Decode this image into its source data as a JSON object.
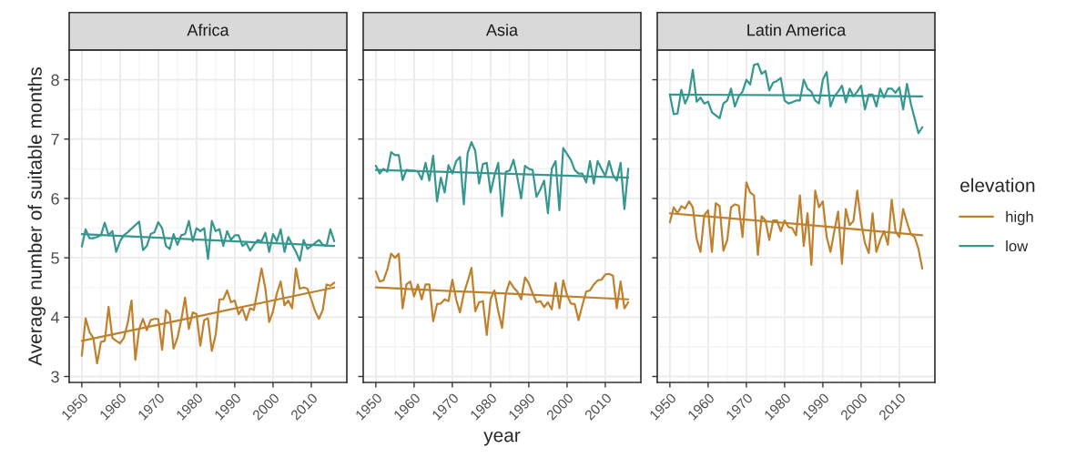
{
  "chart_data": [
    {
      "type": "line",
      "title": "Africa",
      "ylabel": "Average number of suitable months",
      "grid": true,
      "xlim": [
        1946.7,
        2019.3
      ],
      "ylim": [
        2.9,
        8.5
      ],
      "xticks": [
        1950,
        1960,
        1970,
        1980,
        1990,
        2000,
        2010
      ],
      "yticks": [
        3,
        4,
        5,
        6,
        7,
        8
      ],
      "x": [
        1950,
        1951,
        1952,
        1953,
        1954,
        1955,
        1956,
        1957,
        1958,
        1959,
        1960,
        1961,
        1962,
        1963,
        1964,
        1965,
        1966,
        1967,
        1968,
        1969,
        1970,
        1971,
        1972,
        1973,
        1974,
        1975,
        1976,
        1977,
        1978,
        1979,
        1980,
        1981,
        1982,
        1983,
        1984,
        1985,
        1986,
        1987,
        1988,
        1989,
        1990,
        1991,
        1992,
        1993,
        1994,
        1995,
        1996,
        1997,
        1998,
        1999,
        2000,
        2001,
        2002,
        2003,
        2004,
        2005,
        2006,
        2007,
        2008,
        2009,
        2010,
        2011,
        2012,
        2013,
        2014,
        2015,
        2016
      ],
      "series": [
        {
          "color": "#bf812d",
          "values": [
            3.35,
            3.98,
            3.75,
            3.65,
            3.22,
            3.58,
            3.6,
            4.17,
            3.65,
            3.6,
            3.56,
            3.65,
            3.9,
            4.28,
            3.28,
            3.8,
            3.97,
            3.78,
            3.95,
            3.97,
            3.97,
            3.45,
            4.12,
            4.05,
            3.47,
            3.65,
            3.95,
            4.33,
            3.8,
            4.08,
            4.05,
            3.52,
            3.95,
            3.98,
            3.43,
            3.7,
            4.3,
            4.3,
            4.45,
            4.25,
            4.28,
            4.05,
            4.15,
            3.95,
            4.15,
            4.12,
            4.47,
            4.82,
            4.48,
            3.92,
            4.1,
            4.4,
            4.6,
            4.2,
            4.28,
            4.15,
            4.82,
            4.48,
            4.5,
            4.48,
            4.3,
            4.1,
            3.97,
            4.12,
            4.55,
            4.53,
            4.58
          ]
        },
        {
          "color": "#35978f",
          "values": [
            5.19,
            5.48,
            5.33,
            5.33,
            5.35,
            5.38,
            5.59,
            5.38,
            5.45,
            5.1,
            5.28,
            5.38,
            5.43,
            5.49,
            5.55,
            5.61,
            5.13,
            5.2,
            5.4,
            5.43,
            5.6,
            5.5,
            5.2,
            5.15,
            5.4,
            5.22,
            5.38,
            5.4,
            5.62,
            5.28,
            5.5,
            5.45,
            5.5,
            4.98,
            5.62,
            5.45,
            5.48,
            5.2,
            5.45,
            5.3,
            5.38,
            5.38,
            5.2,
            5.25,
            5.12,
            5.22,
            5.3,
            5.28,
            5.42,
            5.1,
            5.4,
            5.28,
            5.48,
            5.1,
            5.35,
            5.22,
            5.1,
            4.95,
            5.3,
            5.15,
            5.2,
            5.25,
            5.3,
            5.22,
            5.2,
            5.48,
            5.28
          ]
        },
        {
          "type": "line",
          "color": "#bf812d",
          "x": [
            1950,
            1983,
            2016
          ],
          "values": [
            3.6,
            4.05,
            4.5
          ]
        },
        {
          "type": "line",
          "color": "#35978f",
          "x": [
            1950,
            1983,
            2016
          ],
          "values": [
            5.4,
            5.3,
            5.2
          ]
        }
      ]
    },
    {
      "type": "line",
      "title": "Asia",
      "xlabel": "year",
      "grid": true,
      "tick_labels": "x",
      "xlim": [
        1946.7,
        2019.3
      ],
      "ylim": [
        2.9,
        8.5
      ],
      "xticks": [
        1950,
        1960,
        1970,
        1980,
        1990,
        2000,
        2010
      ],
      "yticks": [
        3,
        4,
        5,
        6,
        7,
        8
      ],
      "x": [
        1950,
        1951,
        1952,
        1953,
        1954,
        1955,
        1956,
        1957,
        1958,
        1959,
        1960,
        1961,
        1962,
        1963,
        1964,
        1965,
        1966,
        1967,
        1968,
        1969,
        1970,
        1971,
        1972,
        1973,
        1974,
        1975,
        1976,
        1977,
        1978,
        1979,
        1980,
        1981,
        1982,
        1983,
        1984,
        1985,
        1986,
        1987,
        1988,
        1989,
        1990,
        1991,
        1992,
        1993,
        1994,
        1995,
        1996,
        1997,
        1998,
        1999,
        2000,
        2001,
        2002,
        2003,
        2004,
        2005,
        2006,
        2007,
        2008,
        2009,
        2010,
        2011,
        2012,
        2013,
        2014,
        2015,
        2016
      ],
      "series": [
        {
          "color": "#bf812d",
          "values": [
            4.77,
            4.6,
            4.62,
            4.8,
            5.07,
            5.0,
            5.07,
            4.15,
            4.55,
            4.6,
            4.35,
            4.55,
            4.3,
            4.55,
            4.55,
            3.93,
            4.22,
            4.23,
            4.3,
            4.27,
            4.63,
            4.3,
            4.08,
            4.4,
            4.6,
            4.83,
            4.1,
            4.25,
            4.27,
            3.7,
            4.3,
            4.45,
            4.1,
            3.82,
            4.4,
            4.6,
            4.5,
            4.43,
            4.3,
            4.67,
            4.57,
            4.4,
            4.25,
            4.27,
            4.17,
            4.25,
            4.13,
            4.58,
            4.15,
            4.62,
            4.37,
            4.23,
            4.22,
            3.95,
            4.2,
            4.43,
            4.45,
            4.55,
            4.62,
            4.63,
            4.72,
            4.73,
            4.7,
            4.15,
            4.6,
            4.15,
            4.25
          ]
        },
        {
          "color": "#35978f",
          "values": [
            6.55,
            6.42,
            6.5,
            6.45,
            6.78,
            6.73,
            6.73,
            6.31,
            6.48,
            6.47,
            6.47,
            6.45,
            6.32,
            6.6,
            6.3,
            6.72,
            5.95,
            6.35,
            6.1,
            6.56,
            6.42,
            6.63,
            6.7,
            5.9,
            6.76,
            6.95,
            6.8,
            6.25,
            6.58,
            6.6,
            6.1,
            6.38,
            6.6,
            5.7,
            6.45,
            6.47,
            6.65,
            6.35,
            6.0,
            6.55,
            6.5,
            6.48,
            6.03,
            6.15,
            6.3,
            5.75,
            6.5,
            6.63,
            5.8,
            6.85,
            6.75,
            6.65,
            6.48,
            6.42,
            6.42,
            6.27,
            6.63,
            6.25,
            6.63,
            6.5,
            6.38,
            6.63,
            6.4,
            6.3,
            6.6,
            5.82,
            6.5
          ]
        },
        {
          "type": "line",
          "color": "#bf812d",
          "x": [
            1950,
            1983,
            2016
          ],
          "values": [
            4.5,
            4.4,
            4.3
          ]
        },
        {
          "type": "line",
          "color": "#35978f",
          "x": [
            1950,
            1983,
            2016
          ],
          "values": [
            6.48,
            6.42,
            6.35
          ]
        }
      ]
    },
    {
      "type": "line",
      "title": "Latin America",
      "grid": true,
      "tick_labels": "x",
      "legend": "right",
      "legend_title": "elevation",
      "xlim": [
        1946.7,
        2019.3
      ],
      "ylim": [
        2.9,
        8.5
      ],
      "xticks": [
        1950,
        1960,
        1970,
        1980,
        1990,
        2000,
        2010
      ],
      "yticks": [
        3,
        4,
        5,
        6,
        7,
        8
      ],
      "x": [
        1950,
        1951,
        1952,
        1953,
        1954,
        1955,
        1956,
        1957,
        1958,
        1959,
        1960,
        1961,
        1962,
        1963,
        1964,
        1965,
        1966,
        1967,
        1968,
        1969,
        1970,
        1971,
        1972,
        1973,
        1974,
        1975,
        1976,
        1977,
        1978,
        1979,
        1980,
        1981,
        1982,
        1983,
        1984,
        1985,
        1986,
        1987,
        1988,
        1989,
        1990,
        1991,
        1992,
        1993,
        1994,
        1995,
        1996,
        1997,
        1998,
        1999,
        2000,
        2001,
        2002,
        2003,
        2004,
        2005,
        2006,
        2007,
        2008,
        2009,
        2010,
        2011,
        2012,
        2013,
        2014,
        2015,
        2016
      ],
      "series": [
        {
          "name": "high",
          "color": "#bf812d",
          "values": [
            5.6,
            5.85,
            5.75,
            5.87,
            5.83,
            5.95,
            5.85,
            5.32,
            5.1,
            5.72,
            5.8,
            5.1,
            5.92,
            5.87,
            5.12,
            5.3,
            5.85,
            5.9,
            5.88,
            5.35,
            6.27,
            6.1,
            6.05,
            5.05,
            5.7,
            5.63,
            5.3,
            5.63,
            5.63,
            5.45,
            5.63,
            5.52,
            5.5,
            5.38,
            6.05,
            5.2,
            5.75,
            4.88,
            6.13,
            5.85,
            5.95,
            5.35,
            5.1,
            5.45,
            5.78,
            4.9,
            5.82,
            5.55,
            5.62,
            6.13,
            5.6,
            5.25,
            5.08,
            5.75,
            5.1,
            5.3,
            5.45,
            5.22,
            5.98,
            5.45,
            5.35,
            5.82,
            5.6,
            5.4,
            5.35,
            5.15,
            4.82
          ]
        },
        {
          "name": "low",
          "color": "#35978f",
          "values": [
            7.75,
            7.42,
            7.43,
            7.83,
            7.6,
            7.75,
            8.17,
            7.63,
            7.7,
            7.6,
            7.63,
            7.45,
            7.4,
            7.35,
            7.6,
            7.65,
            7.85,
            7.55,
            7.72,
            7.8,
            8.0,
            7.92,
            8.25,
            8.27,
            8.1,
            8.15,
            7.82,
            7.95,
            7.98,
            8.03,
            7.65,
            7.6,
            7.62,
            7.65,
            7.65,
            8.0,
            7.85,
            7.8,
            7.65,
            7.6,
            8.0,
            8.13,
            7.55,
            7.72,
            7.8,
            7.9,
            7.62,
            7.85,
            7.72,
            7.8,
            7.9,
            7.5,
            7.75,
            7.75,
            7.55,
            7.85,
            7.7,
            7.85,
            7.85,
            7.78,
            7.87,
            7.5,
            7.93,
            7.6,
            7.35,
            7.1,
            7.2
          ]
        },
        {
          "type": "line",
          "color": "#bf812d",
          "x": [
            1950,
            1983,
            2016
          ],
          "values": [
            5.75,
            5.57,
            5.38
          ]
        },
        {
          "type": "line",
          "color": "#35978f",
          "x": [
            1950,
            1983,
            2016
          ],
          "values": [
            7.75,
            7.74,
            7.72
          ]
        }
      ]
    }
  ]
}
